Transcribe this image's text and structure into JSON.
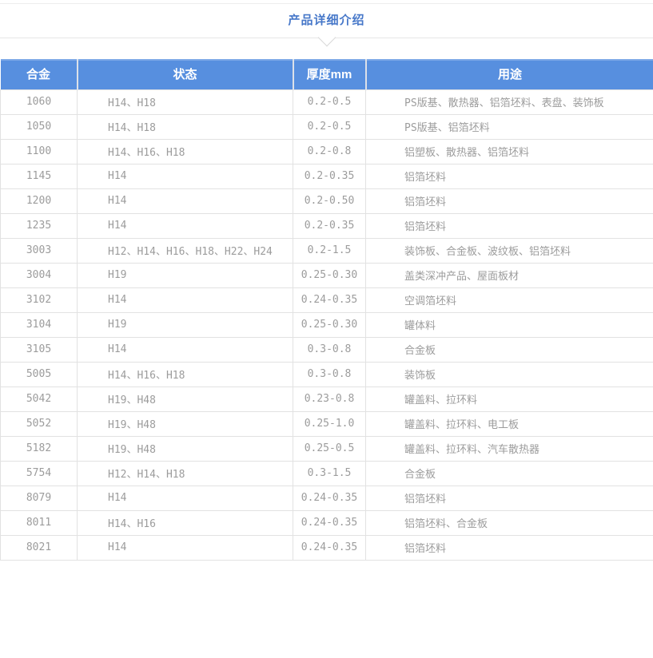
{
  "page": {
    "title": "产品详细介绍"
  },
  "table": {
    "columns": [
      {
        "key": "alloy",
        "label": "合金"
      },
      {
        "key": "temper",
        "label": "状态"
      },
      {
        "key": "thickness",
        "label": "厚度mm"
      },
      {
        "key": "usage",
        "label": "用途"
      }
    ],
    "rows": [
      [
        "1060",
        "H14、H18",
        "0.2-0.5",
        "PS版基、散热器、铝箔坯料、表盘、装饰板"
      ],
      [
        "1050",
        "H14、H18",
        "0.2-0.5",
        "PS版基、铝箔坯料"
      ],
      [
        "1100",
        "H14、H16、H18",
        "0.2-0.8",
        "铝塑板、散热器、铝箔坯料"
      ],
      [
        "1145",
        "H14",
        "0.2-0.35",
        "铝箔坯料"
      ],
      [
        "1200",
        "H14",
        "0.2-0.50",
        "铝箔坯料"
      ],
      [
        "1235",
        "H14",
        "0.2-0.35",
        "铝箔坯料"
      ],
      [
        "3003",
        "H12、H14、H16、H18、H22、H24",
        "0.2-1.5",
        "装饰板、合金板、波纹板、铝箔坯料"
      ],
      [
        "3004",
        "H19",
        "0.25-0.30",
        "盖类深冲产品、屋面板材"
      ],
      [
        "3102",
        "H14",
        "0.24-0.35",
        "空调箔坯料"
      ],
      [
        "3104",
        "H19",
        "0.25-0.30",
        "罐体料"
      ],
      [
        "3105",
        "H14",
        "0.3-0.8",
        "合金板"
      ],
      [
        "5005",
        "H14、H16、H18",
        "0.3-0.8",
        "装饰板"
      ],
      [
        "5042",
        "H19、H48",
        "0.23-0.8",
        "罐盖料、拉环料"
      ],
      [
        "5052",
        "H19、H48",
        "0.25-1.0",
        "罐盖料、拉环料、电工板"
      ],
      [
        "5182",
        "H19、H48",
        "0.25-0.5",
        "罐盖料、拉环料、汽车散热器"
      ],
      [
        "5754",
        "H12、H14、H18",
        "0.3-1.5",
        "合金板"
      ],
      [
        "8079",
        "H14",
        "0.24-0.35",
        "铝箔坯料"
      ],
      [
        "8011",
        "H14、H16",
        "0.24-0.35",
        "铝箔坯料、合金板"
      ],
      [
        "8021",
        "H14",
        "0.24-0.35",
        "铝箔坯料"
      ]
    ]
  },
  "colors": {
    "header_bg": "#578fdf",
    "title_text": "#4778c9",
    "body_text": "#9c9c9c",
    "border": "#e2e2e2"
  }
}
